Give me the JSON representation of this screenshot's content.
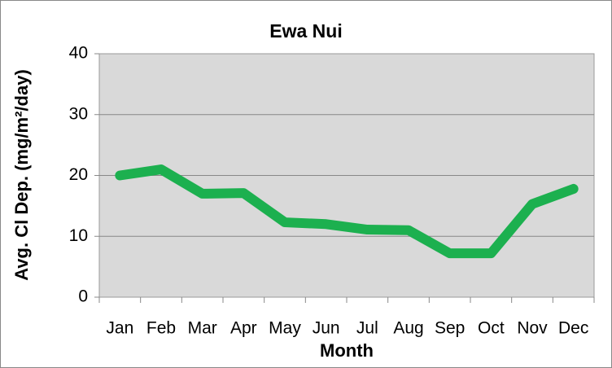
{
  "chart_data": {
    "type": "line",
    "title": "Ewa Nui",
    "x_label": "Month",
    "y_label": "Avg. Cl Dep. (mg/m²/day)",
    "categories": [
      "Jan",
      "Feb",
      "Mar",
      "Apr",
      "May",
      "Jun",
      "Jul",
      "Aug",
      "Sep",
      "Oct",
      "Nov",
      "Dec"
    ],
    "series": [
      {
        "name": "Ewa Nui",
        "color": "#1cb04f",
        "values": [
          20,
          21,
          17,
          17.1,
          12.3,
          12,
          11.1,
          11,
          7.2,
          7.2,
          15.3,
          17.8
        ]
      }
    ],
    "ylim": [
      0,
      40
    ],
    "yticks": [
      0,
      10,
      20,
      30,
      40
    ],
    "grid": true,
    "legend": false
  }
}
